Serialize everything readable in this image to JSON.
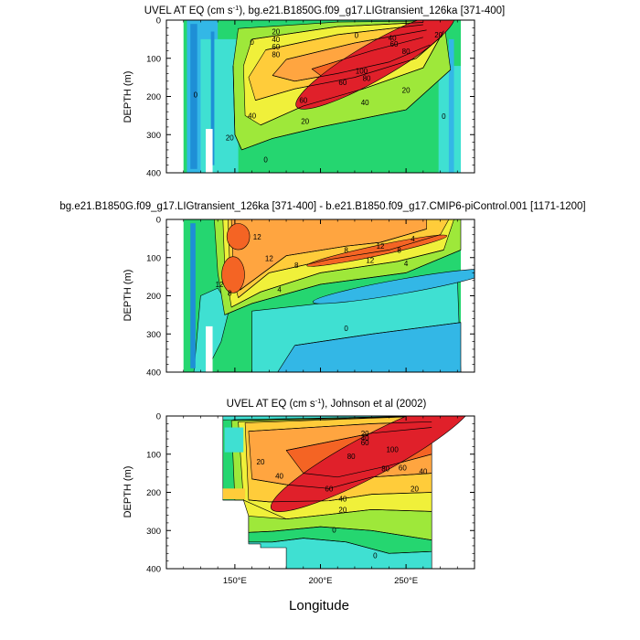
{
  "figure": {
    "xlabel": "Longitude",
    "ylabel": "DEPTH (m)"
  },
  "palette": {
    "white": "#ffffff",
    "strong_westward": "#1e8fd6",
    "westward": "#33b7e6",
    "slight_westward": "#3fe0d2",
    "near_zero": "#25d670",
    "slight_eastward": "#9ee83a",
    "weak_eastward": "#f0f03a",
    "mild_eastward": "#ffcc3a",
    "moderate_eastward": "#ffa540",
    "strong_eastward": "#f46424",
    "core": "#e0202a",
    "contour": "#000000"
  },
  "chart_data": [
    {
      "type": "heatmap",
      "id": "panel-1",
      "title_prefix": "UVEL AT EQ (cm s",
      "title_exp": "-1",
      "title_suffix": "), bg.e21.B1850G.f09_g17.LIGtransient_126ka [371-400]",
      "xlim": [
        110,
        290
      ],
      "ylim": [
        400,
        0
      ],
      "x_ticks": [
        150,
        200,
        250
      ],
      "x_tick_labels": [
        "150°E",
        "200°E",
        "250°E"
      ],
      "y_ticks": [
        0,
        100,
        200,
        300,
        400
      ],
      "y_tick_labels": [
        "0",
        "100",
        "200",
        "300",
        "400"
      ],
      "show_x_labels": false,
      "data_extent_lon": [
        120,
        282
      ],
      "contour_labels": [
        {
          "text": "20",
          "lon": 174,
          "depth": 30
        },
        {
          "text": "40",
          "lon": 174,
          "depth": 50
        },
        {
          "text": "60",
          "lon": 174,
          "depth": 70
        },
        {
          "text": "80",
          "lon": 174,
          "depth": 90
        },
        {
          "text": "0",
          "lon": 160,
          "depth": 58
        },
        {
          "text": "0",
          "lon": 221,
          "depth": 40
        },
        {
          "text": "20",
          "lon": 269,
          "depth": 38
        },
        {
          "text": "40",
          "lon": 242,
          "depth": 47
        },
        {
          "text": "60",
          "lon": 243,
          "depth": 62
        },
        {
          "text": "80",
          "lon": 250,
          "depth": 82
        },
        {
          "text": "100",
          "lon": 224,
          "depth": 133
        },
        {
          "text": "80",
          "lon": 227,
          "depth": 152
        },
        {
          "text": "60",
          "lon": 213,
          "depth": 163
        },
        {
          "text": "60",
          "lon": 190,
          "depth": 210
        },
        {
          "text": "40",
          "lon": 226,
          "depth": 215
        },
        {
          "text": "20",
          "lon": 250,
          "depth": 183
        },
        {
          "text": "40",
          "lon": 160,
          "depth": 250
        },
        {
          "text": "20",
          "lon": 191,
          "depth": 265
        },
        {
          "text": "20",
          "lon": 147,
          "depth": 308
        },
        {
          "text": "0",
          "lon": 168,
          "depth": 365
        },
        {
          "text": "0",
          "lon": 272,
          "depth": 252
        },
        {
          "text": "0",
          "lon": 127,
          "depth": 195
        }
      ]
    },
    {
      "type": "heatmap",
      "id": "panel-2",
      "title_prefix": "bg.e21.B1850G.f09_g17.LIGtransient_126ka [371-400] - b.e21.B1850.f09_g17.CMIP6-piControl.001 [1171-1200]",
      "title_exp": "",
      "title_suffix": "",
      "xlim": [
        110,
        290
      ],
      "ylim": [
        400,
        0
      ],
      "x_ticks": [
        150,
        200,
        250
      ],
      "x_tick_labels": [
        "150°E",
        "200°E",
        "250°E"
      ],
      "y_ticks": [
        0,
        100,
        200,
        300,
        400
      ],
      "y_tick_labels": [
        "0",
        "100",
        "200",
        "300",
        "400"
      ],
      "show_x_labels": false,
      "data_extent_lon": [
        120,
        282
      ],
      "contour_labels": [
        {
          "text": "12",
          "lon": 163,
          "depth": 45
        },
        {
          "text": "8",
          "lon": 215,
          "depth": 80
        },
        {
          "text": "12",
          "lon": 235,
          "depth": 70
        },
        {
          "text": "8",
          "lon": 246,
          "depth": 80
        },
        {
          "text": "4",
          "lon": 254,
          "depth": 50
        },
        {
          "text": "12",
          "lon": 170,
          "depth": 102
        },
        {
          "text": "12",
          "lon": 229,
          "depth": 107
        },
        {
          "text": "8",
          "lon": 186,
          "depth": 120
        },
        {
          "text": "4",
          "lon": 250,
          "depth": 115
        },
        {
          "text": "12",
          "lon": 141,
          "depth": 170
        },
        {
          "text": "8",
          "lon": 147,
          "depth": 193
        },
        {
          "text": "4",
          "lon": 176,
          "depth": 183
        },
        {
          "text": "0",
          "lon": 215,
          "depth": 285
        }
      ]
    },
    {
      "type": "heatmap",
      "id": "panel-3",
      "title_prefix": "UVEL AT EQ (cm s",
      "title_exp": "-1",
      "title_suffix": "), Johnson et al (2002)",
      "xlim": [
        110,
        290
      ],
      "ylim": [
        400,
        0
      ],
      "x_ticks": [
        150,
        200,
        250
      ],
      "x_tick_labels": [
        "150°E",
        "200°E",
        "250°E"
      ],
      "y_ticks": [
        0,
        100,
        200,
        300,
        400
      ],
      "y_tick_labels": [
        "0",
        "100",
        "200",
        "300",
        "400"
      ],
      "show_x_labels": true,
      "data_extent_lon": [
        143,
        265
      ],
      "contour_labels": [
        {
          "text": "20",
          "lon": 226,
          "depth": 45
        },
        {
          "text": "40",
          "lon": 226,
          "depth": 58
        },
        {
          "text": "60",
          "lon": 226,
          "depth": 70
        },
        {
          "text": "80",
          "lon": 218,
          "depth": 105
        },
        {
          "text": "100",
          "lon": 242,
          "depth": 88
        },
        {
          "text": "80",
          "lon": 238,
          "depth": 138
        },
        {
          "text": "60",
          "lon": 248,
          "depth": 135
        },
        {
          "text": "40",
          "lon": 260,
          "depth": 145
        },
        {
          "text": "20",
          "lon": 165,
          "depth": 120
        },
        {
          "text": "40",
          "lon": 176,
          "depth": 157
        },
        {
          "text": "60",
          "lon": 205,
          "depth": 190
        },
        {
          "text": "40",
          "lon": 213,
          "depth": 217
        },
        {
          "text": "20",
          "lon": 213,
          "depth": 245
        },
        {
          "text": "20",
          "lon": 255,
          "depth": 190
        },
        {
          "text": "0",
          "lon": 208,
          "depth": 298
        },
        {
          "text": "0",
          "lon": 232,
          "depth": 365
        }
      ]
    }
  ]
}
